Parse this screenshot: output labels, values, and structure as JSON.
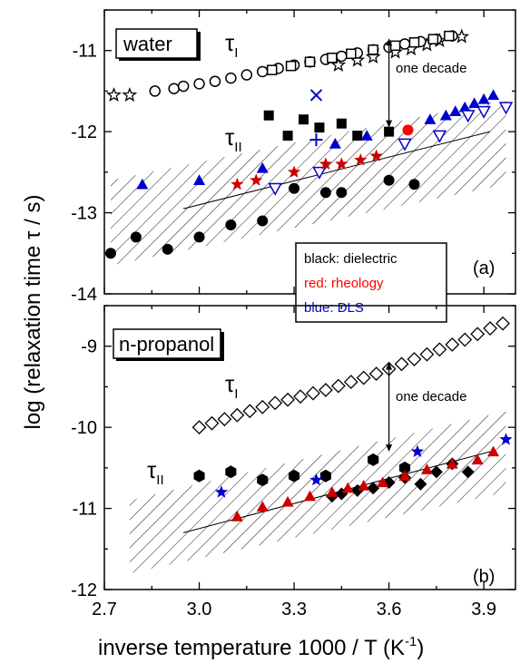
{
  "chart_data": [
    {
      "type": "scatter",
      "panel_label": "(a)",
      "sample_label": "water",
      "xlim": [
        2.7,
        4.0
      ],
      "ylim": [
        -14,
        -10.5
      ],
      "x_ticks": [
        2.7,
        3.0,
        3.3,
        3.6,
        3.9
      ],
      "x_tick_labels": [
        "2.7",
        "3.0",
        "3.3",
        "3.6",
        "3.9"
      ],
      "y_ticks": [
        -14,
        -13,
        -12,
        -11
      ],
      "y_tick_labels": [
        "-14",
        "-13",
        "-12",
        "-11"
      ],
      "annotations": {
        "tau_I": "τ",
        "tau_I_sub": "I",
        "tau_II": "τ",
        "tau_II_sub": "II",
        "decade": "one decade"
      },
      "legend_box": [
        {
          "text": "black: dielectric",
          "color": "#000000"
        },
        {
          "text": "red: rheology",
          "color": "#ff0000"
        },
        {
          "text": "blue: DLS",
          "color": "#0000cc"
        }
      ],
      "hatched_band": {
        "x": [
          2.72,
          3.97
        ],
        "upper": [
          -12.6,
          -11.6
        ],
        "lower": [
          -13.65,
          -12.65
        ]
      },
      "fit_line": {
        "x": [
          2.95,
          3.92
        ],
        "y": [
          -12.95,
          -12.0
        ]
      },
      "decade_arrow": {
        "x": 3.6,
        "y_from": -10.85,
        "y_to": -11.95
      },
      "series": [
        {
          "marker": "star-open",
          "color": "#000000",
          "x": [
            2.73,
            2.78,
            3.44,
            3.5,
            3.55,
            3.62,
            3.67,
            3.72,
            3.76,
            3.83
          ],
          "y": [
            -11.55,
            -11.55,
            -11.18,
            -11.12,
            -11.08,
            -11.02,
            -10.98,
            -10.93,
            -10.88,
            -10.83
          ]
        },
        {
          "marker": "circle-open",
          "color": "#000000",
          "x": [
            2.86,
            2.92,
            2.95,
            3.0,
            3.05,
            3.1,
            3.15,
            3.2,
            3.25,
            3.3,
            3.35,
            3.4,
            3.45,
            3.5,
            3.55,
            3.6,
            3.65,
            3.7,
            3.75,
            3.8
          ],
          "y": [
            -11.5,
            -11.47,
            -11.44,
            -11.41,
            -11.38,
            -11.34,
            -11.3,
            -11.26,
            -11.22,
            -11.18,
            -11.14,
            -11.11,
            -11.07,
            -11.03,
            -10.99,
            -10.96,
            -10.92,
            -10.89,
            -10.86,
            -10.82
          ]
        },
        {
          "marker": "square-open",
          "color": "#000000",
          "x": [
            3.23,
            3.29,
            3.35,
            3.42,
            3.48,
            3.55,
            3.62,
            3.68,
            3.74,
            3.79
          ],
          "y": [
            -11.24,
            -11.19,
            -11.14,
            -11.09,
            -11.04,
            -10.99,
            -10.94,
            -10.9,
            -10.86,
            -10.82
          ]
        },
        {
          "marker": "circle-filled",
          "color": "#000000",
          "x": [
            2.72,
            2.8,
            2.9,
            3.0,
            3.1,
            3.2,
            3.3,
            3.4,
            3.45,
            3.6,
            3.68
          ],
          "y": [
            -13.5,
            -13.3,
            -13.45,
            -13.3,
            -13.15,
            -13.1,
            -12.7,
            -12.75,
            -12.75,
            -12.6,
            -12.65
          ]
        },
        {
          "marker": "square-filled",
          "color": "#000000",
          "x": [
            3.22,
            3.28,
            3.33,
            3.38,
            3.45,
            3.5,
            3.6
          ],
          "y": [
            -11.8,
            -12.05,
            -11.85,
            -11.95,
            -11.9,
            -12.05,
            -12.0
          ]
        },
        {
          "marker": "x",
          "color": "#0000cc",
          "x": [
            3.37
          ],
          "y": [
            -11.55
          ]
        },
        {
          "marker": "plus",
          "color": "#0000cc",
          "x": [
            3.37
          ],
          "y": [
            -12.1
          ]
        },
        {
          "marker": "triangle-filled",
          "color": "#0000cc",
          "x": [
            2.82,
            3.0,
            3.2,
            3.43,
            3.53,
            3.73,
            3.78,
            3.81,
            3.84,
            3.87,
            3.9,
            3.93
          ],
          "y": [
            -12.65,
            -12.6,
            -12.45,
            -12.15,
            -12.05,
            -11.85,
            -11.8,
            -11.75,
            -11.7,
            -11.65,
            -11.6,
            -11.55
          ]
        },
        {
          "marker": "triangle-down-open",
          "color": "#0000cc",
          "x": [
            3.24,
            3.38,
            3.65,
            3.76,
            3.85,
            3.9,
            3.97
          ],
          "y": [
            -12.7,
            -12.5,
            -12.15,
            -12.05,
            -11.8,
            -11.75,
            -11.7
          ]
        },
        {
          "marker": "star-filled",
          "color": "#cc0000",
          "x": [
            3.12,
            3.18,
            3.3,
            3.4,
            3.45,
            3.51,
            3.56
          ],
          "y": [
            -12.65,
            -12.6,
            -12.5,
            -12.4,
            -12.4,
            -12.35,
            -12.3
          ]
        },
        {
          "marker": "circle-filled",
          "color": "#ff0000",
          "x": [
            3.66
          ],
          "y": [
            -11.98
          ]
        }
      ]
    },
    {
      "type": "scatter",
      "panel_label": "(b)",
      "sample_label": "n-propanol",
      "xlim": [
        2.7,
        4.0
      ],
      "ylim": [
        -12,
        -8.5
      ],
      "x_ticks": [
        2.7,
        3.0,
        3.3,
        3.6,
        3.9
      ],
      "x_tick_labels": [
        "2.7",
        "3.0",
        "3.3",
        "3.6",
        "3.9"
      ],
      "y_ticks": [
        -12,
        -11,
        -10,
        -9
      ],
      "y_tick_labels": [
        "-12",
        "-11",
        "-10",
        "-9"
      ],
      "xlabel": "inverse temperature 1000 / T (K",
      "xlabel_sup": "-1",
      "xlabel_end": ")",
      "ylabel": "log (relaxation time τ / s)",
      "annotations": {
        "tau_I": "τ",
        "tau_I_sub": "I",
        "tau_II": "τ",
        "tau_II_sub": "II",
        "decade": "one decade"
      },
      "hatched_band": {
        "x": [
          2.78,
          3.97
        ],
        "upper": [
          -10.9,
          -9.8
        ],
        "lower": [
          -11.8,
          -10.8
        ]
      },
      "fit_line": {
        "x": [
          2.95,
          3.92
        ],
        "y": [
          -11.3,
          -10.3
        ]
      },
      "decade_arrow": {
        "x": 3.6,
        "y_from": -9.2,
        "y_to": -10.3
      },
      "series": [
        {
          "marker": "diamond-open",
          "color": "#000000",
          "x": [
            3.0,
            3.04,
            3.08,
            3.12,
            3.16,
            3.2,
            3.24,
            3.28,
            3.32,
            3.36,
            3.4,
            3.44,
            3.48,
            3.52,
            3.56,
            3.6,
            3.64,
            3.68,
            3.72,
            3.76,
            3.8,
            3.84,
            3.88,
            3.92,
            3.96
          ],
          "y": [
            -10.0,
            -9.95,
            -9.9,
            -9.85,
            -9.8,
            -9.75,
            -9.7,
            -9.66,
            -9.62,
            -9.58,
            -9.54,
            -9.49,
            -9.44,
            -9.39,
            -9.34,
            -9.28,
            -9.22,
            -9.16,
            -9.1,
            -9.04,
            -8.98,
            -8.92,
            -8.85,
            -8.78,
            -8.72
          ]
        },
        {
          "marker": "hexagon-filled",
          "color": "#000000",
          "x": [
            3.0,
            3.1,
            3.2,
            3.3,
            3.4,
            3.55,
            3.65
          ],
          "y": [
            -10.6,
            -10.55,
            -10.65,
            -10.6,
            -10.6,
            -10.4,
            -10.5
          ]
        },
        {
          "marker": "diamond-filled",
          "color": "#000000",
          "x": [
            3.42,
            3.45,
            3.5,
            3.55,
            3.6,
            3.65,
            3.7,
            3.75,
            3.8,
            3.85
          ],
          "y": [
            -10.85,
            -10.82,
            -10.78,
            -10.75,
            -10.68,
            -10.62,
            -10.7,
            -10.55,
            -10.45,
            -10.55
          ]
        },
        {
          "marker": "triangle-filled",
          "color": "#cc0000",
          "x": [
            3.12,
            3.2,
            3.28,
            3.35,
            3.42,
            3.47,
            3.52,
            3.58,
            3.65,
            3.72,
            3.8,
            3.88,
            3.93
          ],
          "y": [
            -11.1,
            -10.98,
            -10.92,
            -10.85,
            -10.8,
            -10.75,
            -10.72,
            -10.68,
            -10.6,
            -10.52,
            -10.45,
            -10.4,
            -10.3
          ]
        },
        {
          "marker": "star-filled",
          "color": "#0000cc",
          "x": [
            3.07,
            3.37,
            3.69,
            3.97
          ],
          "y": [
            -10.8,
            -10.65,
            -10.3,
            -10.15
          ]
        }
      ]
    }
  ]
}
